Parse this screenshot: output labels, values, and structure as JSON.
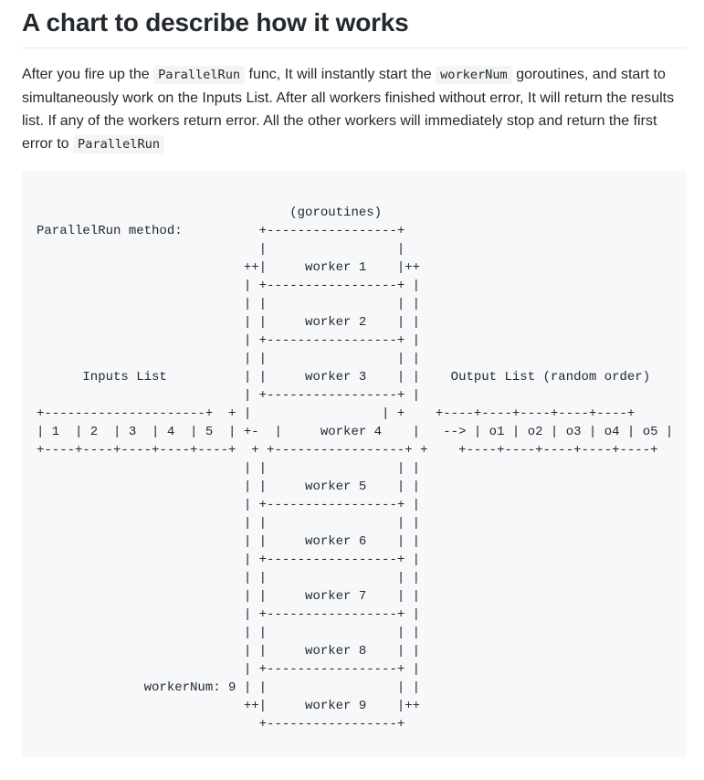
{
  "heading": "A chart to describe how it works",
  "description": {
    "t1": "After you fire up the ",
    "c1": "ParallelRun",
    "t2": " func, It will instantly start the ",
    "c2": "workerNum",
    "t3": " goroutines, and start to simultaneously work on the Inputs List. After all workers finished without error, It will return the results list. If any of the workers return error. All the other workers will immediately stop and return the first error to ",
    "c3": "ParallelRun"
  },
  "chart_lines": [
    "                                 (goroutines)",
    "ParallelRun method:          +-----------------+",
    "                             |                 |",
    "                           ++|     worker 1    |++",
    "                           | +-----------------+ |",
    "                           | |                 | |",
    "                           | |     worker 2    | |",
    "                           | +-----------------+ |",
    "                           | |                 | |",
    "      Inputs List          | |     worker 3    | |    Output List (random order)",
    "                           | +-----------------+ |",
    "+---------------------+  + |                 | +    +----+----+----+----+----+",
    "| 1  | 2  | 3  | 4  | 5  | +-  |     worker 4    |   --> | o1 | o2 | o3 | o4 | o5 |",
    "+----+----+----+----+----+  + +-----------------+ +    +----+----+----+----+----+",
    "                           | |                 | |",
    "                           | |     worker 5    | |",
    "                           | +-----------------+ |",
    "                           | |                 | |",
    "                           | |     worker 6    | |",
    "                           | +-----------------+ |",
    "                           | |                 | |",
    "                           | |     worker 7    | |",
    "                           | +-----------------+ |",
    "                           | |                 | |",
    "                           | |     worker 8    | |",
    "                           | +-----------------+ |",
    "              workerNum: 9 | |                 | |",
    "                           ++|     worker 9    |++",
    "                             +-----------------+"
  ]
}
